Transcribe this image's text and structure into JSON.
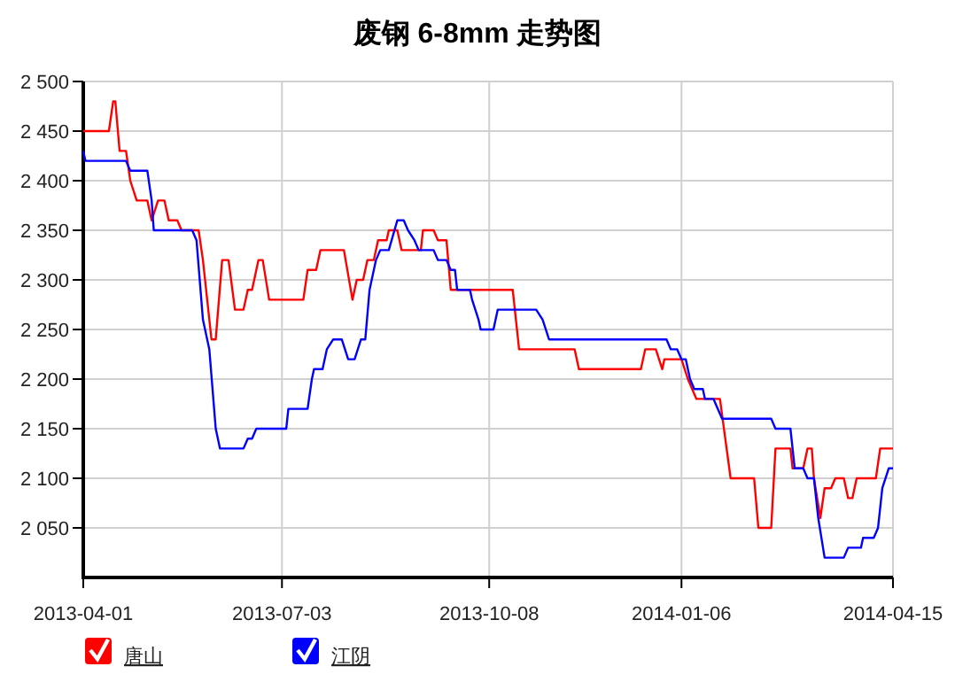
{
  "chart_data": {
    "type": "line",
    "title": "废钢 6-8mm 走势图",
    "xlim": [
      "2013-04-01",
      "2014-04-15"
    ],
    "xticks": [
      "2013-04-01",
      "2013-07-03",
      "2013-10-08",
      "2014-01-06",
      "2014-04-15"
    ],
    "ylim": [
      2000,
      2500
    ],
    "yticks": [
      {
        "value": 2050,
        "label": "2 050"
      },
      {
        "value": 2100,
        "label": "2 100"
      },
      {
        "value": 2150,
        "label": "2 150"
      },
      {
        "value": 2200,
        "label": "2 200"
      },
      {
        "value": 2250,
        "label": "2 250"
      },
      {
        "value": 2300,
        "label": "2 300"
      },
      {
        "value": 2350,
        "label": "2 350"
      },
      {
        "value": 2400,
        "label": "2 400"
      },
      {
        "value": 2450,
        "label": "2 450"
      },
      {
        "value": 2500,
        "label": "2 500"
      }
    ],
    "grid": true,
    "legend": "bottom left",
    "marker": "none",
    "line_style": "solid",
    "series": [
      {
        "name": "唐山",
        "color": "#ff0000",
        "x": [
          "2013-04-01",
          "2013-04-13",
          "2013-04-15",
          "2013-04-16",
          "2013-04-18",
          "2013-04-21",
          "2013-04-23",
          "2013-04-26",
          "2013-05-01",
          "2013-05-03",
          "2013-05-06",
          "2013-05-09",
          "2013-05-11",
          "2013-05-15",
          "2013-05-17",
          "2013-05-25",
          "2013-05-27",
          "2013-05-31",
          "2013-06-02",
          "2013-06-05",
          "2013-06-08",
          "2013-06-11",
          "2013-06-15",
          "2013-06-17",
          "2013-06-19",
          "2013-06-22",
          "2013-06-24",
          "2013-06-27",
          "2013-07-13",
          "2013-07-15",
          "2013-07-19",
          "2013-07-21",
          "2013-08-01",
          "2013-08-05",
          "2013-08-07",
          "2013-08-10",
          "2013-08-12",
          "2013-08-15",
          "2013-08-17",
          "2013-08-21",
          "2013-08-22",
          "2013-08-26",
          "2013-08-28",
          "2013-09-06",
          "2013-09-07",
          "2013-09-12",
          "2013-09-14",
          "2013-09-18",
          "2013-09-20",
          "2013-10-19",
          "2013-10-22",
          "2013-11-17",
          "2013-11-19",
          "2013-12-18",
          "2013-12-20",
          "2013-12-25",
          "2013-12-28",
          "2013-12-29",
          "2014-01-06",
          "2014-01-09",
          "2014-01-13",
          "2014-01-24",
          "2014-01-29",
          "2014-02-09",
          "2014-02-11",
          "2014-02-17",
          "2014-02-19",
          "2014-02-26",
          "2014-02-27",
          "2014-03-04",
          "2014-03-06",
          "2014-03-08",
          "2014-03-09",
          "2014-03-12",
          "2014-03-14",
          "2014-03-17",
          "2014-03-19",
          "2014-03-23",
          "2014-03-25",
          "2014-03-27",
          "2014-03-29",
          "2014-04-07",
          "2014-04-09",
          "2014-04-15"
        ],
        "values": [
          2450,
          2450,
          2480,
          2480,
          2430,
          2430,
          2400,
          2380,
          2380,
          2360,
          2380,
          2380,
          2360,
          2360,
          2350,
          2350,
          2320,
          2240,
          2240,
          2320,
          2320,
          2270,
          2270,
          2290,
          2290,
          2320,
          2320,
          2280,
          2280,
          2310,
          2310,
          2330,
          2330,
          2280,
          2300,
          2300,
          2320,
          2320,
          2340,
          2340,
          2350,
          2350,
          2330,
          2330,
          2350,
          2350,
          2340,
          2340,
          2290,
          2290,
          2230,
          2230,
          2210,
          2210,
          2230,
          2230,
          2210,
          2220,
          2220,
          2200,
          2180,
          2180,
          2100,
          2100,
          2050,
          2050,
          2130,
          2130,
          2110,
          2110,
          2130,
          2130,
          2100,
          2060,
          2090,
          2090,
          2100,
          2100,
          2080,
          2080,
          2100,
          2100,
          2130,
          2130
        ]
      },
      {
        "name": "江阴",
        "color": "#0000ff",
        "x": [
          "2013-04-01",
          "2013-04-02",
          "2013-04-21",
          "2013-04-23",
          "2013-05-01",
          "2013-05-03",
          "2013-05-04",
          "2013-05-22",
          "2013-05-24",
          "2013-05-27",
          "2013-05-30",
          "2013-06-02",
          "2013-06-04",
          "2013-06-15",
          "2013-06-17",
          "2013-06-19",
          "2013-06-21",
          "2013-07-05",
          "2013-07-06",
          "2013-07-15",
          "2013-07-17",
          "2013-07-18",
          "2013-07-22",
          "2013-07-24",
          "2013-07-27",
          "2013-07-31",
          "2013-08-03",
          "2013-08-06",
          "2013-08-09",
          "2013-08-11",
          "2013-08-13",
          "2013-08-16",
          "2013-08-18",
          "2013-08-22",
          "2013-08-26",
          "2013-08-29",
          "2013-08-31",
          "2013-09-03",
          "2013-09-05",
          "2013-09-12",
          "2013-09-14",
          "2013-09-18",
          "2013-09-20",
          "2013-09-22",
          "2013-09-23",
          "2013-09-29",
          "2013-09-30",
          "2013-10-03",
          "2013-10-04",
          "2013-10-10",
          "2013-10-12",
          "2013-10-30",
          "2013-11-02",
          "2013-11-05",
          "2013-12-30",
          "2014-01-01",
          "2014-01-04",
          "2014-01-06",
          "2014-01-08",
          "2014-01-10",
          "2014-01-12",
          "2014-01-16",
          "2014-01-17",
          "2014-01-21",
          "2014-01-25",
          "2014-02-17",
          "2014-02-19",
          "2014-02-26",
          "2014-02-28",
          "2014-03-04",
          "2014-03-06",
          "2014-03-09",
          "2014-03-11",
          "2014-03-14",
          "2014-03-23",
          "2014-03-25",
          "2014-03-31",
          "2014-04-01",
          "2014-04-06",
          "2014-04-08",
          "2014-04-10",
          "2014-04-13",
          "2014-04-15"
        ],
        "values": [
          2430,
          2420,
          2420,
          2410,
          2410,
          2380,
          2350,
          2350,
          2340,
          2260,
          2230,
          2150,
          2130,
          2130,
          2140,
          2140,
          2150,
          2150,
          2170,
          2170,
          2200,
          2210,
          2210,
          2230,
          2240,
          2240,
          2220,
          2220,
          2240,
          2240,
          2290,
          2320,
          2330,
          2330,
          2360,
          2360,
          2350,
          2340,
          2330,
          2330,
          2320,
          2320,
          2310,
          2310,
          2290,
          2290,
          2280,
          2260,
          2250,
          2250,
          2270,
          2270,
          2260,
          2240,
          2240,
          2230,
          2230,
          2220,
          2220,
          2200,
          2190,
          2190,
          2180,
          2180,
          2160,
          2160,
          2150,
          2150,
          2110,
          2110,
          2100,
          2100,
          2060,
          2020,
          2020,
          2030,
          2030,
          2040,
          2040,
          2050,
          2090,
          2110,
          2110
        ]
      }
    ]
  }
}
